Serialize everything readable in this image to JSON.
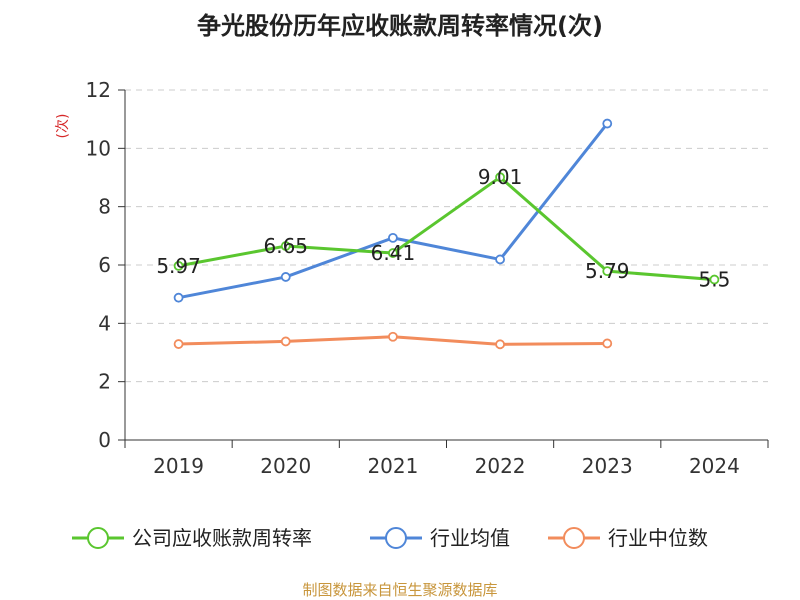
{
  "chart_data": {
    "type": "line",
    "title": "争光股份历年应收账款周转率情况(次)",
    "unit_label": "(次)",
    "categories": [
      "2019",
      "2020",
      "2021",
      "2022",
      "2023",
      "2024"
    ],
    "y_ticks": [
      "0",
      "2",
      "4",
      "6",
      "8",
      "10",
      "12"
    ],
    "ylim": [
      0,
      12
    ],
    "grid": true,
    "legend_position": "bottom",
    "series": [
      {
        "name": "公司应收账款周转率",
        "color": "#5ac62f",
        "values": [
          5.97,
          6.65,
          6.41,
          9.01,
          5.79,
          5.5
        ],
        "labels": [
          "5.97",
          "6.65",
          "6.41",
          "9.01",
          "5.79",
          "5.5"
        ]
      },
      {
        "name": "行业均值",
        "color": "#4f86d8",
        "values": [
          4.88,
          5.59,
          6.93,
          6.19,
          10.85,
          null
        ]
      },
      {
        "name": "行业中位数",
        "color": "#f28c5c",
        "values": [
          3.29,
          3.38,
          3.54,
          3.28,
          3.31,
          null
        ]
      }
    ],
    "source": "制图数据来自恒生聚源数据库"
  }
}
